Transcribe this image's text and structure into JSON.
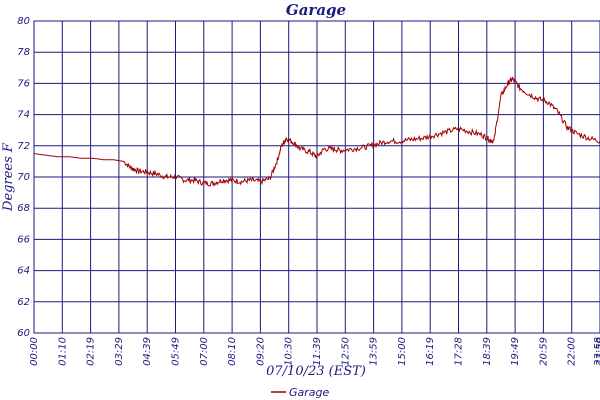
{
  "chart_data": {
    "type": "line",
    "title": "Garage",
    "xlabel": "07/10/23 (EST)",
    "ylabel": "Degrees F",
    "ylim": [
      60,
      80
    ],
    "yticks": [
      60,
      62,
      64,
      66,
      68,
      70,
      72,
      74,
      76,
      78,
      80
    ],
    "xticks": [
      "00:00",
      "01:10",
      "02:19",
      "03:29",
      "04:39",
      "05:49",
      "07:00",
      "08:10",
      "09:20",
      "10:30",
      "11:39",
      "12:50",
      "13:59",
      "15:00",
      "16:19",
      "17:28",
      "18:39",
      "19:49",
      "20:59",
      "22:00",
      "23:59",
      "23:58"
    ],
    "grid": true,
    "legend_position": "bottom-center",
    "colors": {
      "line": "#a00000",
      "grid": "#1a1a80",
      "text": "#1a1a80"
    },
    "series": [
      {
        "name": "Garage",
        "x_hours": [
          0,
          0.5,
          1,
          1.5,
          2,
          2.5,
          3,
          3.4,
          3.8,
          4.1,
          4.4,
          4.8,
          5.2,
          5.6,
          6,
          6.4,
          6.8,
          7.2,
          7.6,
          8,
          8.4,
          8.8,
          9.2,
          9.6,
          10,
          10.3,
          10.5,
          10.7,
          11,
          11.3,
          11.7,
          12,
          12.3,
          12.7,
          13,
          13.5,
          14,
          14.5,
          15,
          15.5,
          16,
          16.5,
          17,
          17.5,
          18,
          18.5,
          19,
          19.3,
          19.5,
          19.8,
          20.1,
          20.3,
          20.6,
          21,
          21.4,
          21.8,
          22.2,
          22.6,
          23,
          23.5,
          24
        ],
        "values": [
          71.5,
          71.4,
          71.3,
          71.3,
          71.2,
          71.2,
          71.1,
          71.1,
          71.0,
          70.6,
          70.4,
          70.3,
          70.2,
          70.0,
          70.0,
          69.8,
          69.8,
          69.6,
          69.6,
          69.8,
          69.8,
          69.7,
          69.8,
          69.7,
          69.9,
          71.0,
          72.0,
          72.5,
          72.2,
          71.8,
          71.6,
          71.3,
          71.8,
          71.8,
          71.7,
          71.8,
          71.9,
          72.1,
          72.3,
          72.3,
          72.4,
          72.5,
          72.7,
          72.9,
          73.1,
          72.9,
          72.7,
          72.4,
          72.3,
          75.2,
          76.0,
          76.3,
          75.7,
          75.3,
          75.0,
          74.8,
          74.2,
          73.2,
          72.8,
          72.5,
          72.3
        ]
      }
    ]
  }
}
